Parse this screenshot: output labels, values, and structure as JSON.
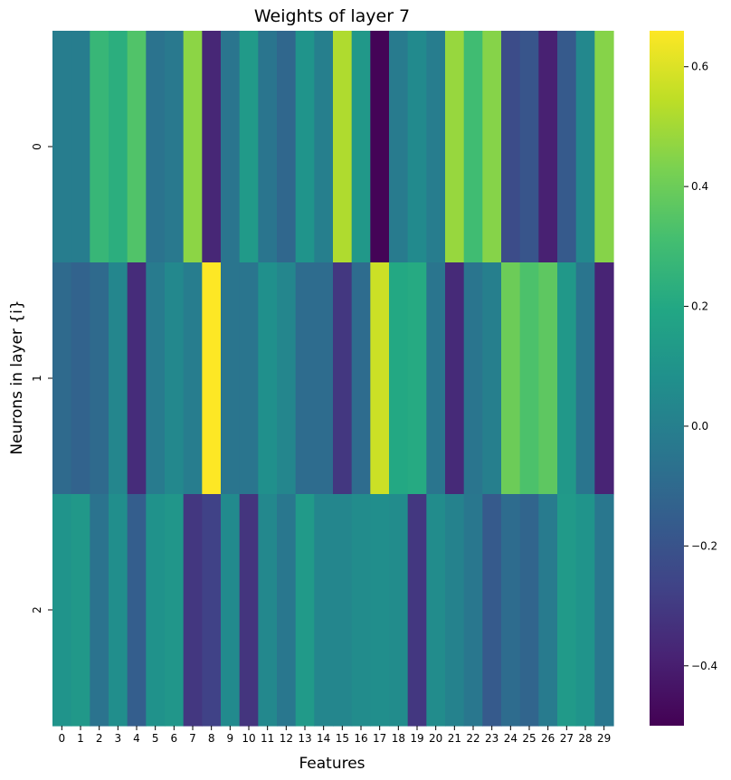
{
  "chart_data": {
    "type": "heatmap",
    "title": "Weights of layer 7",
    "xlabel": "Features",
    "ylabel": "Neurons in layer {i}",
    "x": [
      "0",
      "1",
      "2",
      "3",
      "4",
      "5",
      "6",
      "7",
      "8",
      "9",
      "10",
      "11",
      "12",
      "13",
      "14",
      "15",
      "16",
      "17",
      "18",
      "19",
      "20",
      "21",
      "22",
      "23",
      "24",
      "25",
      "26",
      "27",
      "28",
      "29"
    ],
    "y": [
      "0",
      "1",
      "2"
    ],
    "values": [
      [
        -0.01,
        -0.01,
        0.27,
        0.23,
        0.34,
        -0.06,
        -0.03,
        0.46,
        -0.37,
        -0.05,
        0.13,
        -0.05,
        -0.11,
        0.1,
        0.0,
        0.52,
        0.12,
        -0.49,
        -0.02,
        0.05,
        -0.01,
        0.48,
        0.3,
        0.45,
        -0.23,
        -0.19,
        -0.39,
        -0.17,
        0.04,
        0.45
      ],
      [
        -0.1,
        -0.13,
        -0.1,
        0.03,
        -0.35,
        -0.02,
        0.04,
        -0.01,
        0.66,
        -0.05,
        -0.05,
        0.08,
        0.03,
        -0.09,
        -0.09,
        -0.31,
        -0.09,
        0.57,
        0.2,
        0.21,
        -0.05,
        -0.36,
        -0.05,
        0.0,
        0.4,
        0.33,
        0.37,
        0.12,
        -0.05,
        -0.38
      ],
      [
        0.1,
        0.12,
        -0.06,
        0.07,
        -0.15,
        0.09,
        0.11,
        -0.31,
        -0.27,
        0.05,
        -0.32,
        0.04,
        -0.04,
        0.13,
        0.03,
        0.03,
        0.06,
        0.07,
        0.06,
        -0.31,
        0.06,
        0.01,
        -0.04,
        -0.17,
        -0.09,
        -0.12,
        -0.02,
        0.13,
        0.1,
        -0.04
      ]
    ],
    "vmin": -0.5,
    "vmax": 0.66,
    "colormap": "viridis",
    "colorbar_ticks": [
      -0.4,
      -0.2,
      0.0,
      0.2,
      0.4,
      0.6
    ],
    "colorbar_tick_labels": [
      "−0.4",
      "−0.2",
      "0.0",
      "0.2",
      "0.4",
      "0.6"
    ]
  }
}
